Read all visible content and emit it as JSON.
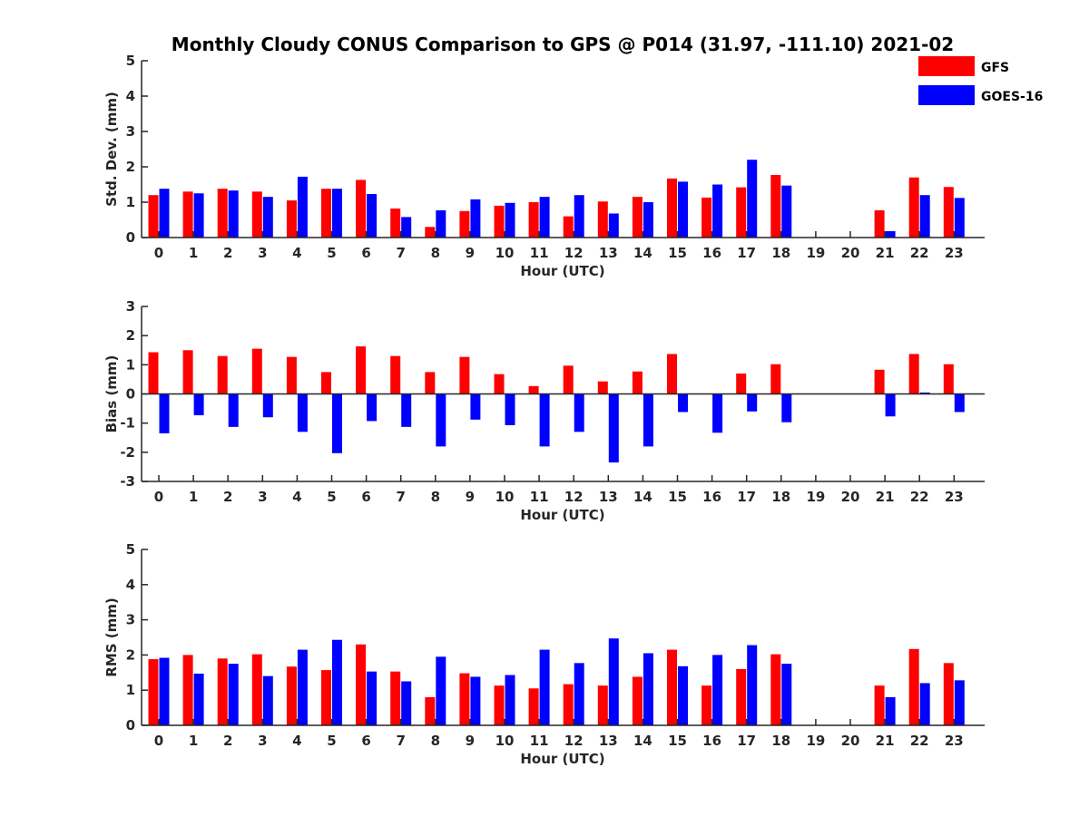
{
  "figure": {
    "title": "Monthly Cloudy CONUS Comparison to GPS @ P014 (31.97, -111.10) 2021-02"
  },
  "colors": {
    "GFS": "#ff0000",
    "GOES-16": "#0000ff",
    "axis": "#262626"
  },
  "legend": {
    "placement": "top-right",
    "entries": [
      "GFS",
      "GOES-16"
    ]
  },
  "chart_data": [
    {
      "type": "bar",
      "xlabel": "Hour (UTC)",
      "ylabel": "Std. Dev. (mm)",
      "ylim": [
        0,
        5
      ],
      "yticks": [
        0,
        1,
        2,
        3,
        4,
        5
      ],
      "categories": [
        "0",
        "1",
        "2",
        "3",
        "4",
        "5",
        "6",
        "7",
        "8",
        "9",
        "10",
        "11",
        "12",
        "13",
        "14",
        "15",
        "16",
        "17",
        "18",
        "19",
        "20",
        "21",
        "22",
        "23"
      ],
      "series": [
        {
          "name": "GFS",
          "values": [
            1.2,
            1.3,
            1.38,
            1.3,
            1.05,
            1.38,
            1.63,
            0.82,
            0.3,
            0.75,
            0.9,
            1.0,
            0.6,
            1.02,
            1.15,
            1.67,
            1.13,
            1.42,
            1.77,
            null,
            null,
            0.77,
            1.7,
            1.43
          ]
        },
        {
          "name": "GOES-16",
          "values": [
            1.38,
            1.25,
            1.33,
            1.15,
            1.72,
            1.38,
            1.23,
            0.58,
            0.77,
            1.08,
            0.98,
            1.15,
            1.2,
            0.68,
            1.0,
            1.58,
            1.5,
            2.2,
            1.47,
            null,
            null,
            0.18,
            1.2,
            1.12
          ]
        }
      ]
    },
    {
      "type": "bar",
      "xlabel": "Hour (UTC)",
      "ylabel": "Bias (mm)",
      "ylim": [
        -3,
        3
      ],
      "yticks": [
        -3,
        -2,
        -1,
        0,
        1,
        2,
        3
      ],
      "categories": [
        "0",
        "1",
        "2",
        "3",
        "4",
        "5",
        "6",
        "7",
        "8",
        "9",
        "10",
        "11",
        "12",
        "13",
        "14",
        "15",
        "16",
        "17",
        "18",
        "19",
        "20",
        "21",
        "22",
        "23"
      ],
      "series": [
        {
          "name": "GFS",
          "values": [
            1.43,
            1.5,
            1.3,
            1.55,
            1.27,
            0.75,
            1.63,
            1.3,
            0.75,
            1.27,
            0.68,
            0.27,
            0.97,
            0.43,
            0.77,
            1.37,
            null,
            0.7,
            1.02,
            null,
            null,
            0.83,
            1.37,
            1.02
          ]
        },
        {
          "name": "GOES-16",
          "values": [
            -1.35,
            -0.73,
            -1.13,
            -0.8,
            -1.3,
            -2.03,
            -0.93,
            -1.13,
            -1.8,
            -0.88,
            -1.07,
            -1.8,
            -1.3,
            -2.35,
            -1.8,
            -0.62,
            -1.33,
            -0.6,
            -0.97,
            null,
            null,
            -0.77,
            0.05,
            -0.62
          ]
        }
      ]
    },
    {
      "type": "bar",
      "xlabel": "Hour (UTC)",
      "ylabel": "RMS (mm)",
      "ylim": [
        0,
        5
      ],
      "yticks": [
        0,
        1,
        2,
        3,
        4,
        5
      ],
      "categories": [
        "0",
        "1",
        "2",
        "3",
        "4",
        "5",
        "6",
        "7",
        "8",
        "9",
        "10",
        "11",
        "12",
        "13",
        "14",
        "15",
        "16",
        "17",
        "18",
        "19",
        "20",
        "21",
        "22",
        "23"
      ],
      "series": [
        {
          "name": "GFS",
          "values": [
            1.88,
            2.0,
            1.9,
            2.02,
            1.67,
            1.57,
            2.3,
            1.53,
            0.8,
            1.48,
            1.13,
            1.05,
            1.17,
            1.13,
            1.38,
            2.15,
            1.13,
            1.6,
            2.02,
            null,
            null,
            1.13,
            2.17,
            1.77
          ]
        },
        {
          "name": "GOES-16",
          "values": [
            1.92,
            1.47,
            1.75,
            1.4,
            2.15,
            2.43,
            1.53,
            1.25,
            1.95,
            1.38,
            1.43,
            2.15,
            1.77,
            2.47,
            2.05,
            1.68,
            2.0,
            2.28,
            1.75,
            null,
            null,
            0.8,
            1.2,
            1.28
          ]
        }
      ]
    }
  ]
}
